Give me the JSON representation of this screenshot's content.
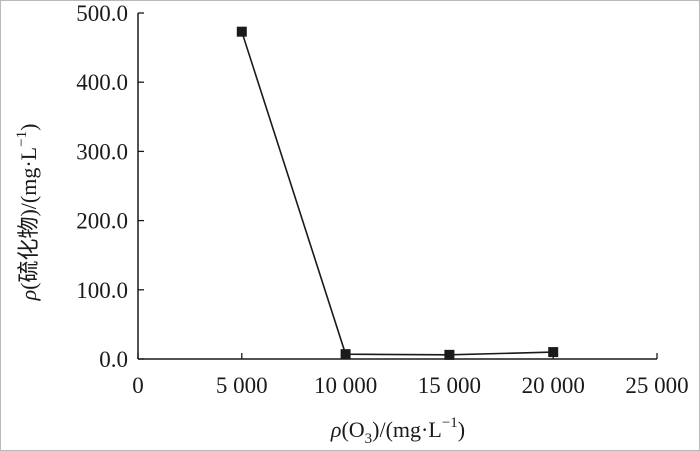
{
  "chart_data": {
    "type": "line",
    "xlabel": {
      "rho": "ρ",
      "prefix": "(O",
      "sub": "3",
      "middle": ")/(mg·L",
      "sup": "−1",
      "suffix": ")"
    },
    "ylabel": {
      "rho": "ρ",
      "prefix": "(硫化物)/(mg·L",
      "sup": "−1",
      "suffix": ")"
    },
    "xlim": [
      0,
      25000
    ],
    "ylim": [
      0,
      500
    ],
    "x_ticks": [
      {
        "value": 0,
        "label": "0"
      },
      {
        "value": 5000,
        "label": "5 000"
      },
      {
        "value": 10000,
        "label": "10 000"
      },
      {
        "value": 15000,
        "label": "15 000"
      },
      {
        "value": 20000,
        "label": "20 000"
      },
      {
        "value": 25000,
        "label": "25 000"
      }
    ],
    "y_ticks": [
      {
        "value": 0,
        "label": "0.0"
      },
      {
        "value": 100,
        "label": "100.0"
      },
      {
        "value": 200,
        "label": "200.0"
      },
      {
        "value": 300,
        "label": "300.0"
      },
      {
        "value": 400,
        "label": "400.0"
      },
      {
        "value": 500,
        "label": "500.0"
      }
    ],
    "series": [
      {
        "marker": "square",
        "color": "#1a1a1a",
        "x": [
          5000,
          10000,
          15000,
          20000
        ],
        "y": [
          473,
          7,
          6,
          10
        ]
      }
    ],
    "grid": false,
    "legend": "none"
  }
}
